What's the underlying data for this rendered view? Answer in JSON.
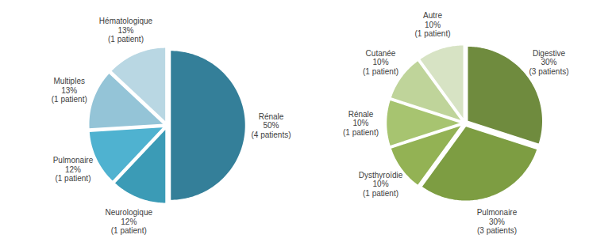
{
  "chart_data": [
    {
      "type": "pie",
      "categories": [
        "Rénale",
        "Neurologique",
        "Pulmonaire",
        "Multiples",
        "Hématologique"
      ],
      "values": [
        50,
        12,
        12,
        13,
        13
      ],
      "value_labels": [
        "50%",
        "12%",
        "12%",
        "13%",
        "13%"
      ],
      "patient_labels": [
        "(4 patients)",
        "(1 patient)",
        "(1 patient)",
        "(1 patient)",
        "(1 patient)"
      ],
      "colors": [
        "#347f99",
        "#3b9bb6",
        "#4fb2d0",
        "#94c4d7",
        "#b9d7e3"
      ]
    },
    {
      "type": "pie",
      "categories": [
        "Digestive",
        "Pulmonaire",
        "Dysthyroïdie",
        "Rénale",
        "Cutanée",
        "Autre"
      ],
      "values": [
        30,
        30,
        10,
        10,
        10,
        10
      ],
      "value_labels": [
        "30%",
        "30%",
        "10%",
        "10%",
        "10%",
        "10%"
      ],
      "patient_labels": [
        "(3 patients)",
        "(3 patients)",
        "(1 patient)",
        "(1 patient)",
        "(1 patient)",
        "(1 patient)"
      ],
      "colors": [
        "#6f8b3e",
        "#7d9d42",
        "#93b254",
        "#a7c470",
        "#bfd49a",
        "#d7e3c4"
      ]
    }
  ]
}
